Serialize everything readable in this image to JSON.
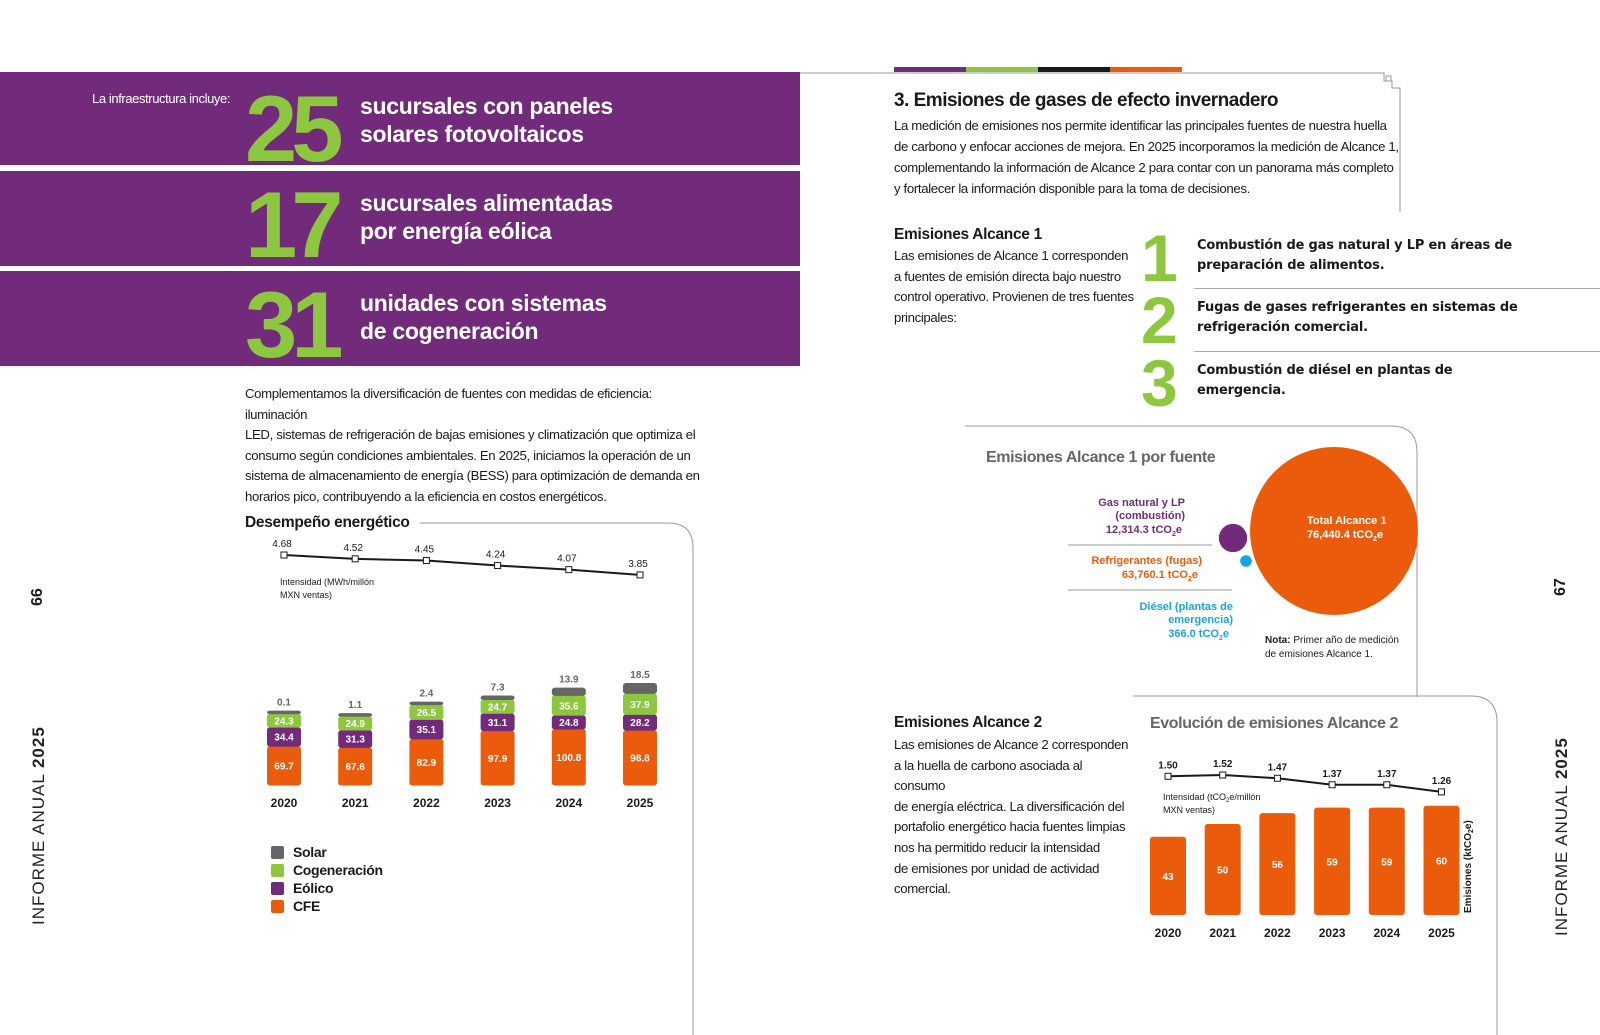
{
  "left_page": {
    "page_number": "66",
    "side_label_prefix": "INFORME ANUAL",
    "side_label_year": "2025",
    "infra_intro": "La infraestructura incluye:",
    "highlights": [
      {
        "number": "25",
        "line1": "sucursales con paneles",
        "line2": "solares fotovoltaicos"
      },
      {
        "number": "17",
        "line1": "sucursales alimentadas",
        "line2": "por energía eólica"
      },
      {
        "number": "31",
        "line1": "unidades con sistemas",
        "line2": "de cogeneración"
      }
    ],
    "paragraph_lines": [
      "Complementamos la diversificación de fuentes con medidas de eficiencia: iluminación",
      "LED, sistemas de refrigeración de bajas emisiones y climatización que optimiza el",
      "consumo según condiciones ambientales. En 2025, iniciamos la operación de un",
      "sistema de almacenamiento de energía (BESS) para optimización de demanda en",
      "horarios pico, contribuyendo a la eficiencia en costos energéticos."
    ]
  },
  "right_page": {
    "page_number": "67",
    "side_label_prefix": "INFORME ANUAL",
    "side_label_year": "2025",
    "section_title": "3. Emisiones de gases de efecto invernadero",
    "section_lines": [
      "La medición de emisiones nos permite identificar las principales fuentes de nuestra huella",
      "de carbono y enfocar acciones de mejora. En 2025 incorporamos la medición de Alcance 1,",
      "complementando la información de Alcance 2 para contar con un panorama más completo",
      "y fortalecer la información disponible para la toma de decisiones."
    ],
    "scope1": {
      "title": "Emisiones Alcance 1",
      "lines": [
        "Las emisiones de Alcance 1 corresponden",
        "a fuentes de emisión directa bajo nuestro",
        "control operativo. Provienen de tres fuentes",
        "principales:"
      ],
      "sources": [
        {
          "number": "1",
          "line1": "Combustión de gas natural y LP en áreas de",
          "line2": "preparación de alimentos."
        },
        {
          "number": "2",
          "line1": "Fugas de gases refrigerantes en sistemas de",
          "line2": "refrigeración comercial."
        },
        {
          "number": "3",
          "line1": "Combustión de diésel en plantas de",
          "line2": "emergencia."
        }
      ]
    },
    "scope2": {
      "title": "Emisiones Alcance 2",
      "lines": [
        "Las emisiones de Alcance 2 corresponden",
        "a la huella de carbono asociada al consumo",
        "de energía eléctrica. La diversificación del",
        "portafolio energético hacia fuentes limpias",
        "nos ha permitido reducir la intensidad",
        "de emisiones por unidad de actividad",
        "comercial."
      ]
    }
  },
  "colors": {
    "purple": "#722a7b",
    "green": "#8dc63f",
    "orange": "#ea5b0c",
    "gray": "#666666",
    "blue": "#1ba3dc",
    "tab_bar": [
      "#722a7b",
      "#8dc63f",
      "#1a1a1a",
      "#ea5b0c"
    ]
  },
  "chart_data": [
    {
      "type": "bar",
      "title": "Desempeño energético",
      "stacked": true,
      "categories": [
        "2020",
        "2021",
        "2022",
        "2023",
        "2024",
        "2025"
      ],
      "series": [
        {
          "name": "CFE",
          "color": "#ea5b0c",
          "values": [
            69.7,
            67.6,
            82.9,
            97.9,
            100.8,
            98.8
          ]
        },
        {
          "name": "Eólico",
          "color": "#722a7b",
          "values": [
            34.4,
            31.3,
            35.1,
            31.1,
            24.8,
            28.2
          ]
        },
        {
          "name": "Cogeneración",
          "color": "#8dc63f",
          "values": [
            24.3,
            24.9,
            26.5,
            24.7,
            35.6,
            37.9
          ]
        },
        {
          "name": "Solar",
          "color": "#666666",
          "values": [
            0.1,
            1.1,
            2.4,
            7.3,
            13.9,
            18.5
          ]
        }
      ],
      "legend_order": [
        "Solar",
        "Cogeneración",
        "Eólico",
        "CFE"
      ],
      "legend_position": "bottom-left",
      "line": {
        "label_lines": [
          "Intensidad (MWh/millón",
          "MXN ventas)"
        ],
        "values": [
          4.68,
          4.52,
          4.45,
          4.24,
          4.07,
          3.85
        ],
        "labels": [
          "4.68",
          "4.52",
          "4.45",
          "4.24",
          "4.07",
          "3.85"
        ]
      }
    },
    {
      "type": "bubble",
      "title": "Emisiones Alcance 1 por fuente",
      "total": {
        "label": "Total Alcance 1",
        "value": 76440.4,
        "value_text": "76,440.4 tCO",
        "unit_sub": "2",
        "unit_tail": "e"
      },
      "slices": [
        {
          "label_lines": [
            "Gas natural y LP",
            "(combustión)"
          ],
          "value": 12314.3,
          "value_text": "12,314.3 tCO",
          "color": "#722a7b"
        },
        {
          "label_lines": [
            "Refrigerantes (fugas)"
          ],
          "value": 63760.1,
          "value_text": "63,760.1 tCO",
          "color": "#ea5b0c"
        },
        {
          "label_lines": [
            "Diésel  (plantas de",
            "emergencia)"
          ],
          "value": 366.0,
          "value_text": "366.0 tCO",
          "color": "#1ba3dc"
        }
      ],
      "unit_sub": "2",
      "unit_tail": "e",
      "note_bold": "Nota:",
      "note_lines": [
        "Primer año de medición",
        "de emisiones Alcance 1."
      ]
    },
    {
      "type": "bar",
      "title": "Evolución de emisiones Alcance 2",
      "categories": [
        "2020",
        "2021",
        "2022",
        "2023",
        "2024",
        "2025"
      ],
      "series": [
        {
          "name": "Emisiones",
          "color": "#ea5b0c",
          "values": [
            43,
            50,
            56,
            59,
            59,
            60
          ]
        }
      ],
      "ylabel_main": "Emisiones (ktCO",
      "ylabel_sub": "2",
      "ylabel_tail": "e)",
      "line": {
        "label_lines": [
          "Intensidad (tCO",
          "e/millón",
          "MXN ventas)"
        ],
        "label_sub": "2",
        "values": [
          1.5,
          1.52,
          1.47,
          1.37,
          1.37,
          1.26
        ],
        "labels": [
          "1.50",
          "1.52",
          "1.47",
          "1.37",
          "1.37",
          "1.26"
        ]
      }
    }
  ]
}
